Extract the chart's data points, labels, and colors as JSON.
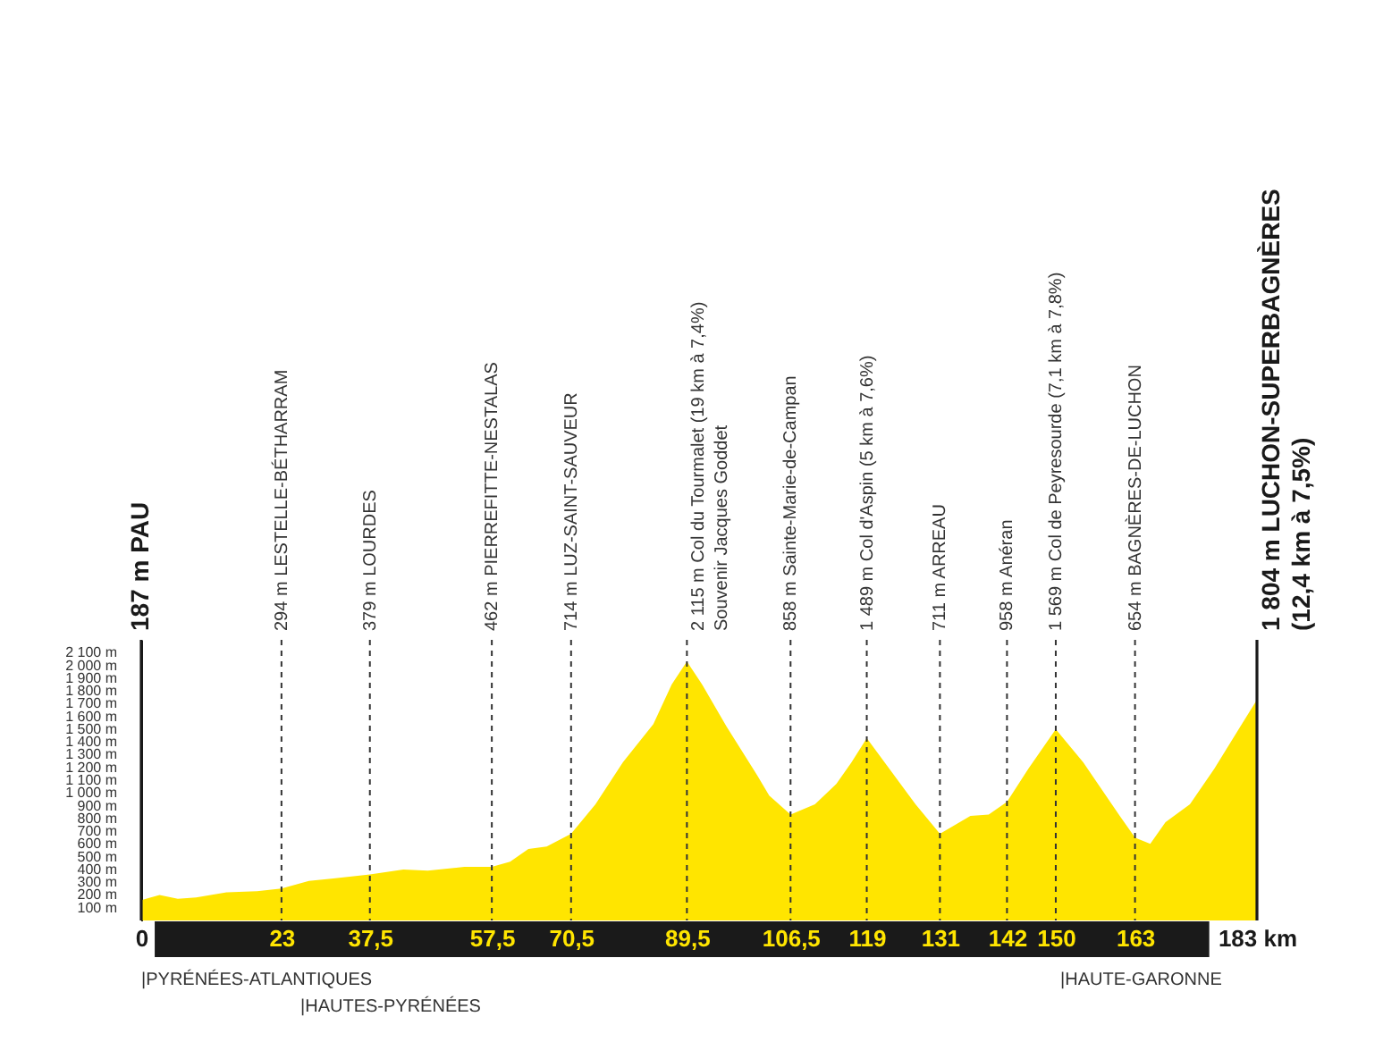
{
  "chart_data": {
    "type": "area",
    "x": [
      0,
      3,
      6,
      9,
      14,
      19,
      23,
      27.5,
      31.5,
      37.5,
      43,
      47,
      53,
      57.5,
      60.5,
      63.5,
      66.5,
      70.5,
      74.5,
      79,
      84,
      87,
      89.5,
      92,
      96,
      101,
      103,
      106.5,
      110.5,
      114,
      116.5,
      119,
      123,
      127,
      131,
      136,
      139,
      142,
      145.5,
      150,
      154.5,
      160.5,
      163,
      165.5,
      168,
      172,
      176,
      180,
      183
    ],
    "series": [
      {
        "color": "#ffe500",
        "values": [
          160,
          200,
          170,
          180,
          220,
          230,
          250,
          310,
          330,
          360,
          400,
          390,
          420,
          420,
          460,
          560,
          580,
          680,
          910,
          1240,
          1540,
          1850,
          2030,
          1850,
          1520,
          1140,
          980,
          830,
          910,
          1070,
          1240,
          1430,
          1170,
          910,
          680,
          820,
          830,
          930,
          1190,
          1500,
          1240,
          820,
          650,
          600,
          770,
          910,
          1190,
          1500,
          1730
        ]
      }
    ],
    "xlim": [
      0,
      183
    ],
    "xticks": [
      0,
      23,
      {
        "value": 37.5,
        "label": "37,5"
      },
      {
        "value": 57.5,
        "label": "57,5"
      },
      {
        "value": 70.5,
        "label": "70,5"
      },
      {
        "value": 89.5,
        "label": "89,5"
      },
      {
        "value": 106.5,
        "label": "106,5"
      },
      119,
      131,
      142,
      150,
      163,
      {
        "value": 183,
        "label": "183 km"
      }
    ],
    "ylim": [
      0,
      2200
    ],
    "yticks": [
      {
        "value": 100,
        "label": "100 m"
      },
      {
        "value": 200,
        "label": "200 m"
      },
      {
        "value": 300,
        "label": "300 m"
      },
      {
        "value": 400,
        "label": "400 m"
      },
      {
        "value": 500,
        "label": "500 m"
      },
      {
        "value": 600,
        "label": "600 m"
      },
      {
        "value": 700,
        "label": "700 m"
      },
      {
        "value": 800,
        "label": "800 m"
      },
      {
        "value": 900,
        "label": "900 m"
      },
      {
        "value": 1000,
        "label": "1 000 m"
      },
      {
        "value": 1100,
        "label": "1 100 m"
      },
      {
        "value": 1200,
        "label": "1 200 m"
      },
      {
        "value": 1300,
        "label": "1 300 m"
      },
      {
        "value": 1400,
        "label": "1 400 m"
      },
      {
        "value": 1500,
        "label": "1 500 m"
      },
      {
        "value": 1600,
        "label": "1 600 m"
      },
      {
        "value": 1700,
        "label": "1 700 m"
      },
      {
        "value": 1800,
        "label": "1 800 m"
      },
      {
        "value": 1900,
        "label": "1 900 m"
      },
      {
        "value": 2000,
        "label": "2 000 m"
      },
      {
        "value": 2100,
        "label": "2 100 m"
      }
    ],
    "ref_lines": [
      {
        "axis": "x",
        "value": 0,
        "label": "187 m PAU",
        "line_style": "solid"
      },
      {
        "axis": "x",
        "value": 23,
        "label": "294 m LESTELLE-BÉTHARRAM",
        "line_style": "dashed"
      },
      {
        "axis": "x",
        "value": 37.5,
        "label": "379 m LOURDES",
        "line_style": "dashed"
      },
      {
        "axis": "x",
        "value": 57.5,
        "label": "462 m PIERREFITTE-NESTALAS",
        "line_style": "dashed"
      },
      {
        "axis": "x",
        "value": 70.5,
        "label": "714 m LUZ-SAINT-SAUVEUR",
        "line_style": "dashed"
      },
      {
        "axis": "x",
        "value": 89.5,
        "label": "2 115 m Col du Tourmalet (19 km à 7,4%)\nSouvenir Jacques Goddet",
        "line_style": "dashed"
      },
      {
        "axis": "x",
        "value": 106.5,
        "label": "858 m Sainte-Marie-de-Campan",
        "line_style": "dashed"
      },
      {
        "axis": "x",
        "value": 119,
        "label": "1 489 m Col d'Aspin (5 km à 7,6%)",
        "line_style": "dashed"
      },
      {
        "axis": "x",
        "value": 131,
        "label": "711 m ARREAU",
        "line_style": "dashed"
      },
      {
        "axis": "x",
        "value": 142,
        "label": "958 m Anéran",
        "line_style": "dashed"
      },
      {
        "axis": "x",
        "value": 150,
        "label": "1 569 m Col de Peyresourde (7,1 km à 7,8%)",
        "line_style": "dashed"
      },
      {
        "axis": "x",
        "value": 163,
        "label": "654 m BAGNÈRES-DE-LUCHON",
        "line_style": "dashed"
      },
      {
        "axis": "x",
        "value": 183,
        "label": "1 804 m LUCHON-SUPERBAGNÈRES\n(12,4 km à 7,5%)",
        "line_style": "solid"
      }
    ],
    "annotations": [
      "|PYRÉNÉES-ATLANTIQUES",
      "|HAUTES-PYRÉNÉES",
      "|HAUTE-GARONNE"
    ],
    "grid": false
  }
}
